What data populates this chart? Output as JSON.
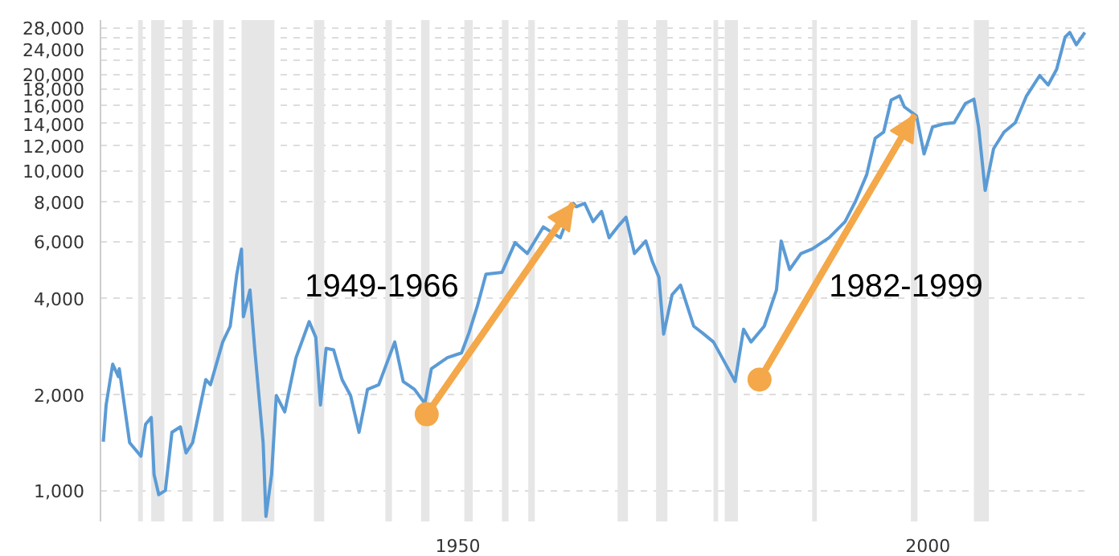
{
  "chart_data": {
    "type": "line",
    "log": "y",
    "grid": "y",
    "xlim": [
      1912,
      2017
    ],
    "ylim": [
      800,
      29500
    ],
    "xticks": [
      {
        "value": 1950,
        "label": "1950"
      },
      {
        "value": 2000,
        "label": "2000"
      }
    ],
    "yticks": [
      {
        "value": 1000,
        "label": "1,000"
      },
      {
        "value": 2000,
        "label": "2,000"
      },
      {
        "value": 4000,
        "label": "4,000"
      },
      {
        "value": 6000,
        "label": "6,000"
      },
      {
        "value": 8000,
        "label": "8,000"
      },
      {
        "value": 10000,
        "label": "10,000"
      },
      {
        "value": 12000,
        "label": "12,000"
      },
      {
        "value": 14000,
        "label": "14,000"
      },
      {
        "value": 16000,
        "label": "16,000"
      },
      {
        "value": 18000,
        "label": "18,000"
      },
      {
        "value": 20000,
        "label": "20,000"
      },
      {
        "value": 22000,
        "label": null
      },
      {
        "value": 24000,
        "label": "24,000"
      },
      {
        "value": 26000,
        "label": null
      },
      {
        "value": 28000,
        "label": "28,000"
      }
    ],
    "series": [
      {
        "color": "#5b9bd5",
        "x": [
          1912.3,
          1912.6,
          1913.3,
          1913.9,
          1914.0,
          1915.1,
          1916.3,
          1916.8,
          1917.4,
          1917.7,
          1918.2,
          1918.9,
          1919.6,
          1920.5,
          1921.1,
          1921.8,
          1923.2,
          1923.7,
          1925.0,
          1925.8,
          1926.5,
          1927.0,
          1927.2,
          1927.9,
          1928.4,
          1929.3,
          1929.6,
          1930.2,
          1930.7,
          1931.6,
          1932.8,
          1934.2,
          1934.9,
          1935.4,
          1936.0,
          1936.8,
          1937.7,
          1938.6,
          1939.5,
          1940.4,
          1941.6,
          1943.3,
          1944.2,
          1945.4,
          1946.5,
          1947.2,
          1948.9,
          1950.4,
          1951.2,
          1952.1,
          1953.0,
          1954.7,
          1956.1,
          1957.4,
          1959.1,
          1960.9,
          1962.3,
          1962.6,
          1963.5,
          1964.4,
          1965.3,
          1966.1,
          1967.0,
          1967.9,
          1968.8,
          1970.0,
          1970.7,
          1971.4,
          1971.9,
          1972.8,
          1973.7,
          1975.1,
          1976.0,
          1977.2,
          1978.6,
          1979.5,
          1980.4,
          1981.2,
          1982.6,
          1983.9,
          1984.4,
          1985.3,
          1986.5,
          1987.7,
          1989.5,
          1991.2,
          1992.3,
          1993.5,
          1994.4,
          1995.3,
          1996.1,
          1997.0,
          1997.5,
          1998.8,
          1999.6,
          2000.5,
          2001.8,
          2002.8,
          2004.0,
          2004.9,
          2005.4,
          2006.1,
          2007.0,
          2008.1,
          2009.3,
          2010.5,
          2011.9,
          2012.8,
          2013.7,
          2014.6,
          2015.1,
          2015.8,
          2016.7
        ],
        "values": [
          1420,
          1850,
          2480,
          2270,
          2400,
          1410,
          1280,
          1610,
          1690,
          1120,
          970,
          1000,
          1520,
          1580,
          1310,
          1410,
          2220,
          2140,
          2910,
          3260,
          4740,
          5680,
          3490,
          4230,
          2780,
          1410,
          830,
          1120,
          1980,
          1760,
          2600,
          3370,
          3010,
          1850,
          2780,
          2750,
          2220,
          1980,
          1520,
          2070,
          2140,
          2910,
          2190,
          2070,
          1870,
          2400,
          2600,
          2690,
          3110,
          3780,
          4740,
          4800,
          5950,
          5500,
          6660,
          6160,
          7890,
          7700,
          7890,
          6920,
          7450,
          6160,
          6660,
          7140,
          5500,
          6020,
          5190,
          4630,
          3080,
          4090,
          4380,
          3260,
          3110,
          2910,
          2450,
          2190,
          3190,
          2910,
          3260,
          4230,
          6020,
          4900,
          5500,
          5680,
          6160,
          6920,
          8000,
          9700,
          12600,
          13170,
          16600,
          17100,
          15800,
          14800,
          11260,
          13670,
          14000,
          14100,
          16200,
          16700,
          13670,
          8660,
          11700,
          13170,
          14100,
          17100,
          19800,
          18500,
          20700,
          26100,
          27000,
          24700,
          27000
        ]
      },
      {
        "type": "line",
        "marker": "circle",
        "color": "#f4a84a",
        "x": [
          1946.7,
          1962.3
        ],
        "values": [
          1730,
          7890
        ]
      },
      {
        "type": "line",
        "marker": "circle",
        "color": "#f4a84a",
        "x": [
          1982.1,
          1998.6
        ],
        "values": [
          2220,
          14900
        ]
      }
    ],
    "annotations": [
      "1949-1966",
      "1982-1999"
    ],
    "bands": [
      {
        "axis": "x",
        "from": 1916.0,
        "to": 1916.5,
        "color": "#e6e6e6"
      },
      {
        "axis": "x",
        "from": 1917.4,
        "to": 1918.8,
        "color": "#e6e6e6"
      },
      {
        "axis": "x",
        "from": 1920.7,
        "to": 1921.8,
        "color": "#e6e6e6"
      },
      {
        "axis": "x",
        "from": 1924.0,
        "to": 1925.1,
        "color": "#e6e6e6"
      },
      {
        "axis": "x",
        "from": 1927.0,
        "to": 1930.5,
        "color": "#e6e6e6"
      },
      {
        "axis": "x",
        "from": 1934.7,
        "to": 1935.8,
        "color": "#e6e6e6"
      },
      {
        "axis": "x",
        "from": 1942.3,
        "to": 1943.0,
        "color": "#e6e6e6"
      },
      {
        "axis": "x",
        "from": 1946.1,
        "to": 1947.0,
        "color": "#e6e6e6"
      },
      {
        "axis": "x",
        "from": 1950.7,
        "to": 1951.6,
        "color": "#e6e6e6"
      },
      {
        "axis": "x",
        "from": 1954.7,
        "to": 1955.4,
        "color": "#e6e6e6"
      },
      {
        "axis": "x",
        "from": 1957.5,
        "to": 1958.2,
        "color": "#e6e6e6"
      },
      {
        "axis": "x",
        "from": 1967.0,
        "to": 1968.1,
        "color": "#e6e6e6"
      },
      {
        "axis": "x",
        "from": 1971.1,
        "to": 1972.3,
        "color": "#e6e6e6"
      },
      {
        "axis": "x",
        "from": 1977.2,
        "to": 1977.7,
        "color": "#e6e6e6"
      },
      {
        "axis": "x",
        "from": 1978.4,
        "to": 1979.8,
        "color": "#e6e6e6"
      },
      {
        "axis": "x",
        "from": 1987.7,
        "to": 1988.2,
        "color": "#e6e6e6"
      },
      {
        "axis": "x",
        "from": 1998.2,
        "to": 1998.9,
        "color": "#e6e6e6"
      },
      {
        "axis": "x",
        "from": 2004.9,
        "to": 2006.5,
        "color": "#e6e6e6"
      }
    ]
  }
}
